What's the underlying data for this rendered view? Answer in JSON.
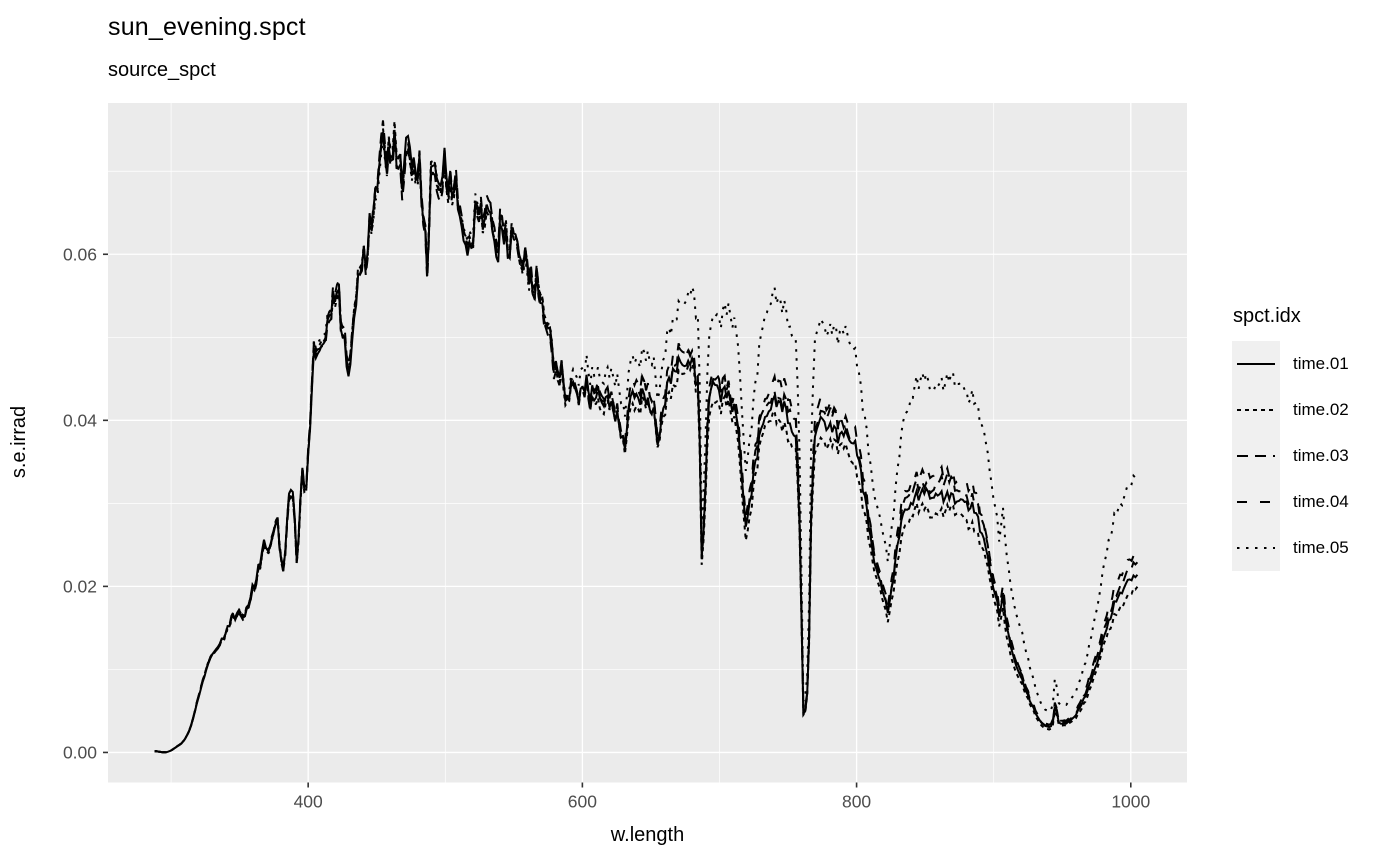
{
  "chart_data": {
    "type": "line",
    "title": "sun_evening.spct",
    "subtitle": "source_spct",
    "xlabel": "w.length",
    "ylabel": "s.e.irrad",
    "legend_title": "spct.idx",
    "legend_position": "right",
    "grid": true,
    "x_ticks": [
      400,
      600,
      800,
      1000
    ],
    "x_tick_labels": [
      "400",
      "600",
      "800",
      "1000"
    ],
    "x_minor_ticks": [
      300,
      500,
      700,
      900
    ],
    "y_ticks": [
      0.0,
      0.02,
      0.04,
      0.06
    ],
    "y_tick_labels": [
      "0.00",
      "0.02",
      "0.04",
      "0.06"
    ],
    "y_minor_ticks": [
      0.01,
      0.03,
      0.05,
      0.07
    ],
    "x_range": [
      254,
      1041
    ],
    "y_range": [
      -0.00362,
      0.07822
    ],
    "colors": {
      "panel_bg": "#EBEBEB",
      "grid": "#FFFFFF",
      "line": "#000000",
      "axis_text": "#4D4D4D",
      "tick_mark": "#333333",
      "legend_key_bg": "#F0F0F0",
      "title": "#000000"
    },
    "base_points": [
      [
        288,
        3e-05
      ],
      [
        295,
        8e-05
      ],
      [
        300,
        0.0003
      ],
      [
        304,
        0.0006
      ],
      [
        308,
        0.001
      ],
      [
        311,
        0.0018
      ],
      [
        314,
        0.003
      ],
      [
        317,
        0.0048
      ],
      [
        320,
        0.0068
      ],
      [
        323,
        0.0085
      ],
      [
        326,
        0.01
      ],
      [
        329,
        0.0115
      ],
      [
        332,
        0.0122
      ],
      [
        335,
        0.0128
      ],
      [
        338,
        0.0138
      ],
      [
        341,
        0.0148
      ],
      [
        344,
        0.0158
      ],
      [
        347,
        0.0165
      ],
      [
        350,
        0.017
      ],
      [
        353,
        0.0158
      ],
      [
        356,
        0.018
      ],
      [
        359,
        0.0192
      ],
      [
        362,
        0.02
      ],
      [
        365,
        0.0232
      ],
      [
        368,
        0.025
      ],
      [
        371,
        0.0238
      ],
      [
        374,
        0.0268
      ],
      [
        377,
        0.0283
      ],
      [
        380,
        0.0238
      ],
      [
        382,
        0.0215
      ],
      [
        384,
        0.0268
      ],
      [
        386,
        0.0298
      ],
      [
        388,
        0.0322
      ],
      [
        390,
        0.029
      ],
      [
        392,
        0.0222
      ],
      [
        394,
        0.0298
      ],
      [
        396,
        0.0338
      ],
      [
        398,
        0.0312
      ],
      [
        400,
        0.036
      ],
      [
        402,
        0.0425
      ],
      [
        404,
        0.047
      ],
      [
        406,
        0.0495
      ],
      [
        408,
        0.0485
      ],
      [
        410,
        0.0505
      ],
      [
        412,
        0.048
      ],
      [
        415,
        0.053
      ],
      [
        418,
        0.0545
      ],
      [
        421,
        0.055
      ],
      [
        424,
        0.0525
      ],
      [
        427,
        0.0495
      ],
      [
        430,
        0.0443
      ],
      [
        433,
        0.0532
      ],
      [
        436,
        0.0565
      ],
      [
        439,
        0.058
      ],
      [
        442,
        0.0595
      ],
      [
        445,
        0.0625
      ],
      [
        448,
        0.0643
      ],
      [
        451,
        0.0705
      ],
      [
        454,
        0.0745
      ],
      [
        457,
        0.0702
      ],
      [
        460,
        0.0735
      ],
      [
        463,
        0.0718
      ],
      [
        466,
        0.0708
      ],
      [
        469,
        0.0692
      ],
      [
        472,
        0.0725
      ],
      [
        475,
        0.071
      ],
      [
        478,
        0.0708
      ],
      [
        481,
        0.0692
      ],
      [
        484,
        0.0655
      ],
      [
        487,
        0.059
      ],
      [
        490,
        0.0703
      ],
      [
        493,
        0.071
      ],
      [
        496,
        0.0672
      ],
      [
        499,
        0.0695
      ],
      [
        502,
        0.0693
      ],
      [
        505,
        0.0682
      ],
      [
        508,
        0.0675
      ],
      [
        511,
        0.0665
      ],
      [
        514,
        0.062
      ],
      [
        517,
        0.0598
      ],
      [
        520,
        0.0632
      ],
      [
        523,
        0.0655
      ],
      [
        526,
        0.0638
      ],
      [
        529,
        0.0658
      ],
      [
        532,
        0.0655
      ],
      [
        535,
        0.0625
      ],
      [
        538,
        0.061
      ],
      [
        541,
        0.0635
      ],
      [
        544,
        0.0618
      ],
      [
        547,
        0.0612
      ],
      [
        550,
        0.062
      ],
      [
        553,
        0.0605
      ],
      [
        556,
        0.0588
      ],
      [
        559,
        0.0582
      ],
      [
        562,
        0.0572
      ],
      [
        565,
        0.0562
      ],
      [
        568,
        0.0555
      ],
      [
        571,
        0.054
      ],
      [
        574,
        0.051
      ],
      [
        577,
        0.0488
      ],
      [
        580,
        0.046
      ],
      [
        583,
        0.0452
      ],
      [
        586,
        0.0445
      ],
      [
        589,
        0.0425
      ],
      [
        592,
        0.0445
      ],
      [
        595,
        0.0435
      ],
      [
        598,
        0.0435
      ],
      [
        602,
        0.0437
      ],
      [
        606,
        0.0434
      ],
      [
        610,
        0.043
      ],
      [
        614,
        0.0427
      ],
      [
        618,
        0.0427
      ],
      [
        622,
        0.0422
      ],
      [
        625,
        0.0415
      ],
      [
        628,
        0.0385
      ],
      [
        631,
        0.037
      ],
      [
        634,
        0.0418
      ],
      [
        637,
        0.0428
      ],
      [
        640,
        0.043
      ],
      [
        644,
        0.0434
      ],
      [
        648,
        0.043
      ],
      [
        652,
        0.0415
      ],
      [
        655,
        0.0365
      ],
      [
        658,
        0.0405
      ],
      [
        661,
        0.0425
      ],
      [
        664,
        0.0448
      ],
      [
        667,
        0.046
      ],
      [
        670,
        0.0465
      ],
      [
        674,
        0.0471
      ],
      [
        678,
        0.0471
      ],
      [
        682,
        0.0462
      ],
      [
        685,
        0.0432
      ],
      [
        687,
        0.0235
      ],
      [
        689,
        0.0268
      ],
      [
        691,
        0.0385
      ],
      [
        693,
        0.0432
      ],
      [
        696,
        0.0438
      ],
      [
        700,
        0.0436
      ],
      [
        704,
        0.0439
      ],
      [
        708,
        0.0425
      ],
      [
        711,
        0.0415
      ],
      [
        714,
        0.038
      ],
      [
        717,
        0.0312
      ],
      [
        719,
        0.0275
      ],
      [
        721,
        0.0282
      ],
      [
        723,
        0.031
      ],
      [
        726,
        0.0355
      ],
      [
        729,
        0.0382
      ],
      [
        732,
        0.0402
      ],
      [
        735,
        0.0415
      ],
      [
        738,
        0.042
      ],
      [
        742,
        0.0424
      ],
      [
        746,
        0.0419
      ],
      [
        750,
        0.0402
      ],
      [
        753,
        0.0392
      ],
      [
        756,
        0.0382
      ],
      [
        759,
        0.025
      ],
      [
        761,
        0.0048
      ],
      [
        763,
        0.0052
      ],
      [
        765,
        0.0095
      ],
      [
        767,
        0.0295
      ],
      [
        769,
        0.0372
      ],
      [
        772,
        0.0392
      ],
      [
        776,
        0.0395
      ],
      [
        780,
        0.0394
      ],
      [
        784,
        0.039
      ],
      [
        788,
        0.0384
      ],
      [
        792,
        0.0379
      ],
      [
        796,
        0.0372
      ],
      [
        799,
        0.0362
      ],
      [
        802,
        0.0345
      ],
      [
        805,
        0.0318
      ],
      [
        808,
        0.0282
      ],
      [
        811,
        0.0248
      ],
      [
        814,
        0.0225
      ],
      [
        817,
        0.0205
      ],
      [
        820,
        0.019
      ],
      [
        823,
        0.017
      ],
      [
        826,
        0.0195
      ],
      [
        829,
        0.0238
      ],
      [
        832,
        0.0272
      ],
      [
        835,
        0.0292
      ],
      [
        838,
        0.0302
      ],
      [
        841,
        0.0308
      ],
      [
        845,
        0.0313
      ],
      [
        849,
        0.0317
      ],
      [
        853,
        0.0305
      ],
      [
        857,
        0.0311
      ],
      [
        861,
        0.0312
      ],
      [
        865,
        0.0315
      ],
      [
        869,
        0.0311
      ],
      [
        873,
        0.0306
      ],
      [
        877,
        0.0302
      ],
      [
        881,
        0.0297
      ],
      [
        885,
        0.0291
      ],
      [
        889,
        0.0278
      ],
      [
        892,
        0.0262
      ],
      [
        895,
        0.0242
      ],
      [
        898,
        0.0215
      ],
      [
        901,
        0.0192
      ],
      [
        904,
        0.0162
      ],
      [
        907,
        0.0185
      ],
      [
        910,
        0.0142
      ],
      [
        913,
        0.0122
      ],
      [
        916,
        0.0108
      ],
      [
        919,
        0.0095
      ],
      [
        922,
        0.0082
      ],
      [
        925,
        0.0068
      ],
      [
        928,
        0.0055
      ],
      [
        931,
        0.0045
      ],
      [
        934,
        0.0038
      ],
      [
        937,
        0.0033
      ],
      [
        940,
        0.0031
      ],
      [
        943,
        0.0033
      ],
      [
        945,
        0.006
      ],
      [
        947,
        0.0035
      ],
      [
        950,
        0.0035
      ],
      [
        953,
        0.0036
      ],
      [
        956,
        0.004
      ],
      [
        960,
        0.0046
      ],
      [
        964,
        0.0056
      ],
      [
        967,
        0.0068
      ],
      [
        970,
        0.0082
      ],
      [
        973,
        0.0098
      ],
      [
        976,
        0.0115
      ],
      [
        979,
        0.0132
      ],
      [
        982,
        0.0148
      ],
      [
        985,
        0.0162
      ],
      [
        988,
        0.0175
      ],
      [
        991,
        0.0186
      ],
      [
        994,
        0.0196
      ],
      [
        997,
        0.0204
      ],
      [
        1000,
        0.021
      ],
      [
        1003,
        0.0214
      ],
      [
        1005,
        0.0216
      ]
    ],
    "series": [
      {
        "name": "time.01",
        "linetype": "solid",
        "dash": "",
        "relative_level": [
          [
            288,
            1
          ],
          [
            1005,
            1
          ]
        ]
      },
      {
        "name": "time.02",
        "linetype": "22",
        "dash": "4,4",
        "relative_level": [
          [
            288,
            1
          ],
          [
            580,
            1
          ],
          [
            650,
            0.975
          ],
          [
            720,
            0.96
          ],
          [
            800,
            0.945
          ],
          [
            900,
            0.93
          ],
          [
            1005,
            0.915
          ]
        ]
      },
      {
        "name": "time.03",
        "linetype": "42",
        "dash": "11,7",
        "relative_level": [
          [
            288,
            1
          ],
          [
            580,
            1
          ],
          [
            650,
            1.01
          ],
          [
            720,
            1.02
          ],
          [
            800,
            1.03
          ],
          [
            900,
            1.04
          ],
          [
            1005,
            1.05
          ]
        ]
      },
      {
        "name": "time.04",
        "linetype": "44",
        "dash": "10,13",
        "relative_level": [
          [
            288,
            1
          ],
          [
            580,
            1
          ],
          [
            650,
            1.025
          ],
          [
            720,
            1.045
          ],
          [
            800,
            1.06
          ],
          [
            900,
            1.08
          ],
          [
            1005,
            1.11
          ]
        ]
      },
      {
        "name": "time.05",
        "linetype": "13",
        "dash": "2.5,6.5",
        "relative_level": [
          [
            288,
            1
          ],
          [
            560,
            1
          ],
          [
            600,
            1.045
          ],
          [
            640,
            1.1
          ],
          [
            680,
            1.18
          ],
          [
            720,
            1.26
          ],
          [
            760,
            1.3
          ],
          [
            800,
            1.33
          ],
          [
            840,
            1.4
          ],
          [
            880,
            1.45
          ],
          [
            920,
            1.65
          ],
          [
            960,
            1.6
          ],
          [
            1005,
            1.57
          ]
        ]
      }
    ]
  }
}
